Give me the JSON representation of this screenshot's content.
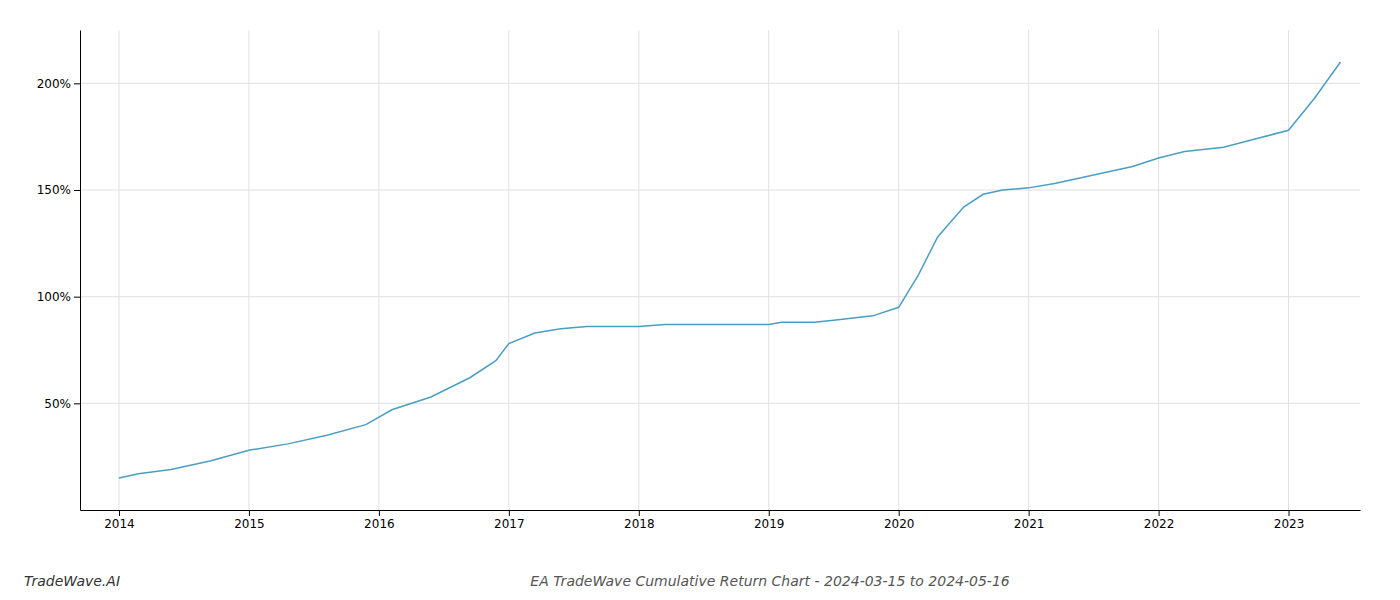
{
  "chart_data": {
    "type": "line",
    "title": "EA TradeWave Cumulative Return Chart - 2024-03-15 to 2024-05-16",
    "annotations": [
      "TradeWave.AI"
    ],
    "x": [
      2014.0,
      2014.15,
      2014.4,
      2014.7,
      2015.0,
      2015.3,
      2015.6,
      2015.9,
      2016.1,
      2016.4,
      2016.7,
      2016.9,
      2017.0,
      2017.2,
      2017.4,
      2017.6,
      2017.8,
      2018.0,
      2018.2,
      2018.5,
      2018.8,
      2019.0,
      2019.1,
      2019.2,
      2019.35,
      2019.5,
      2019.65,
      2019.8,
      2020.0,
      2020.15,
      2020.3,
      2020.5,
      2020.65,
      2020.8,
      2021.0,
      2021.2,
      2021.5,
      2021.8,
      2022.0,
      2022.2,
      2022.5,
      2022.75,
      2023.0,
      2023.2,
      2023.4
    ],
    "values": [
      15,
      17,
      19,
      23,
      28,
      31,
      35,
      40,
      47,
      53,
      62,
      70,
      78,
      83,
      85,
      86,
      86,
      86,
      87,
      87,
      87,
      87,
      88,
      88,
      88,
      89,
      90,
      91,
      95,
      110,
      128,
      142,
      148,
      150,
      151,
      153,
      157,
      161,
      165,
      168,
      170,
      174,
      178,
      193,
      210
    ],
    "color": "#4a9ec4",
    "xlim": [
      2013.7,
      2023.55
    ],
    "xticks": [
      2014,
      2015,
      2016,
      2017,
      2018,
      2019,
      2020,
      2021,
      2022,
      2023
    ],
    "ylim": [
      0,
      225
    ],
    "yticks": [
      {
        "value": 50,
        "label": "50%"
      },
      {
        "value": 100,
        "label": "100%"
      },
      {
        "value": 150,
        "label": "150%"
      },
      {
        "value": 200,
        "label": "200%"
      }
    ],
    "grid": true
  }
}
